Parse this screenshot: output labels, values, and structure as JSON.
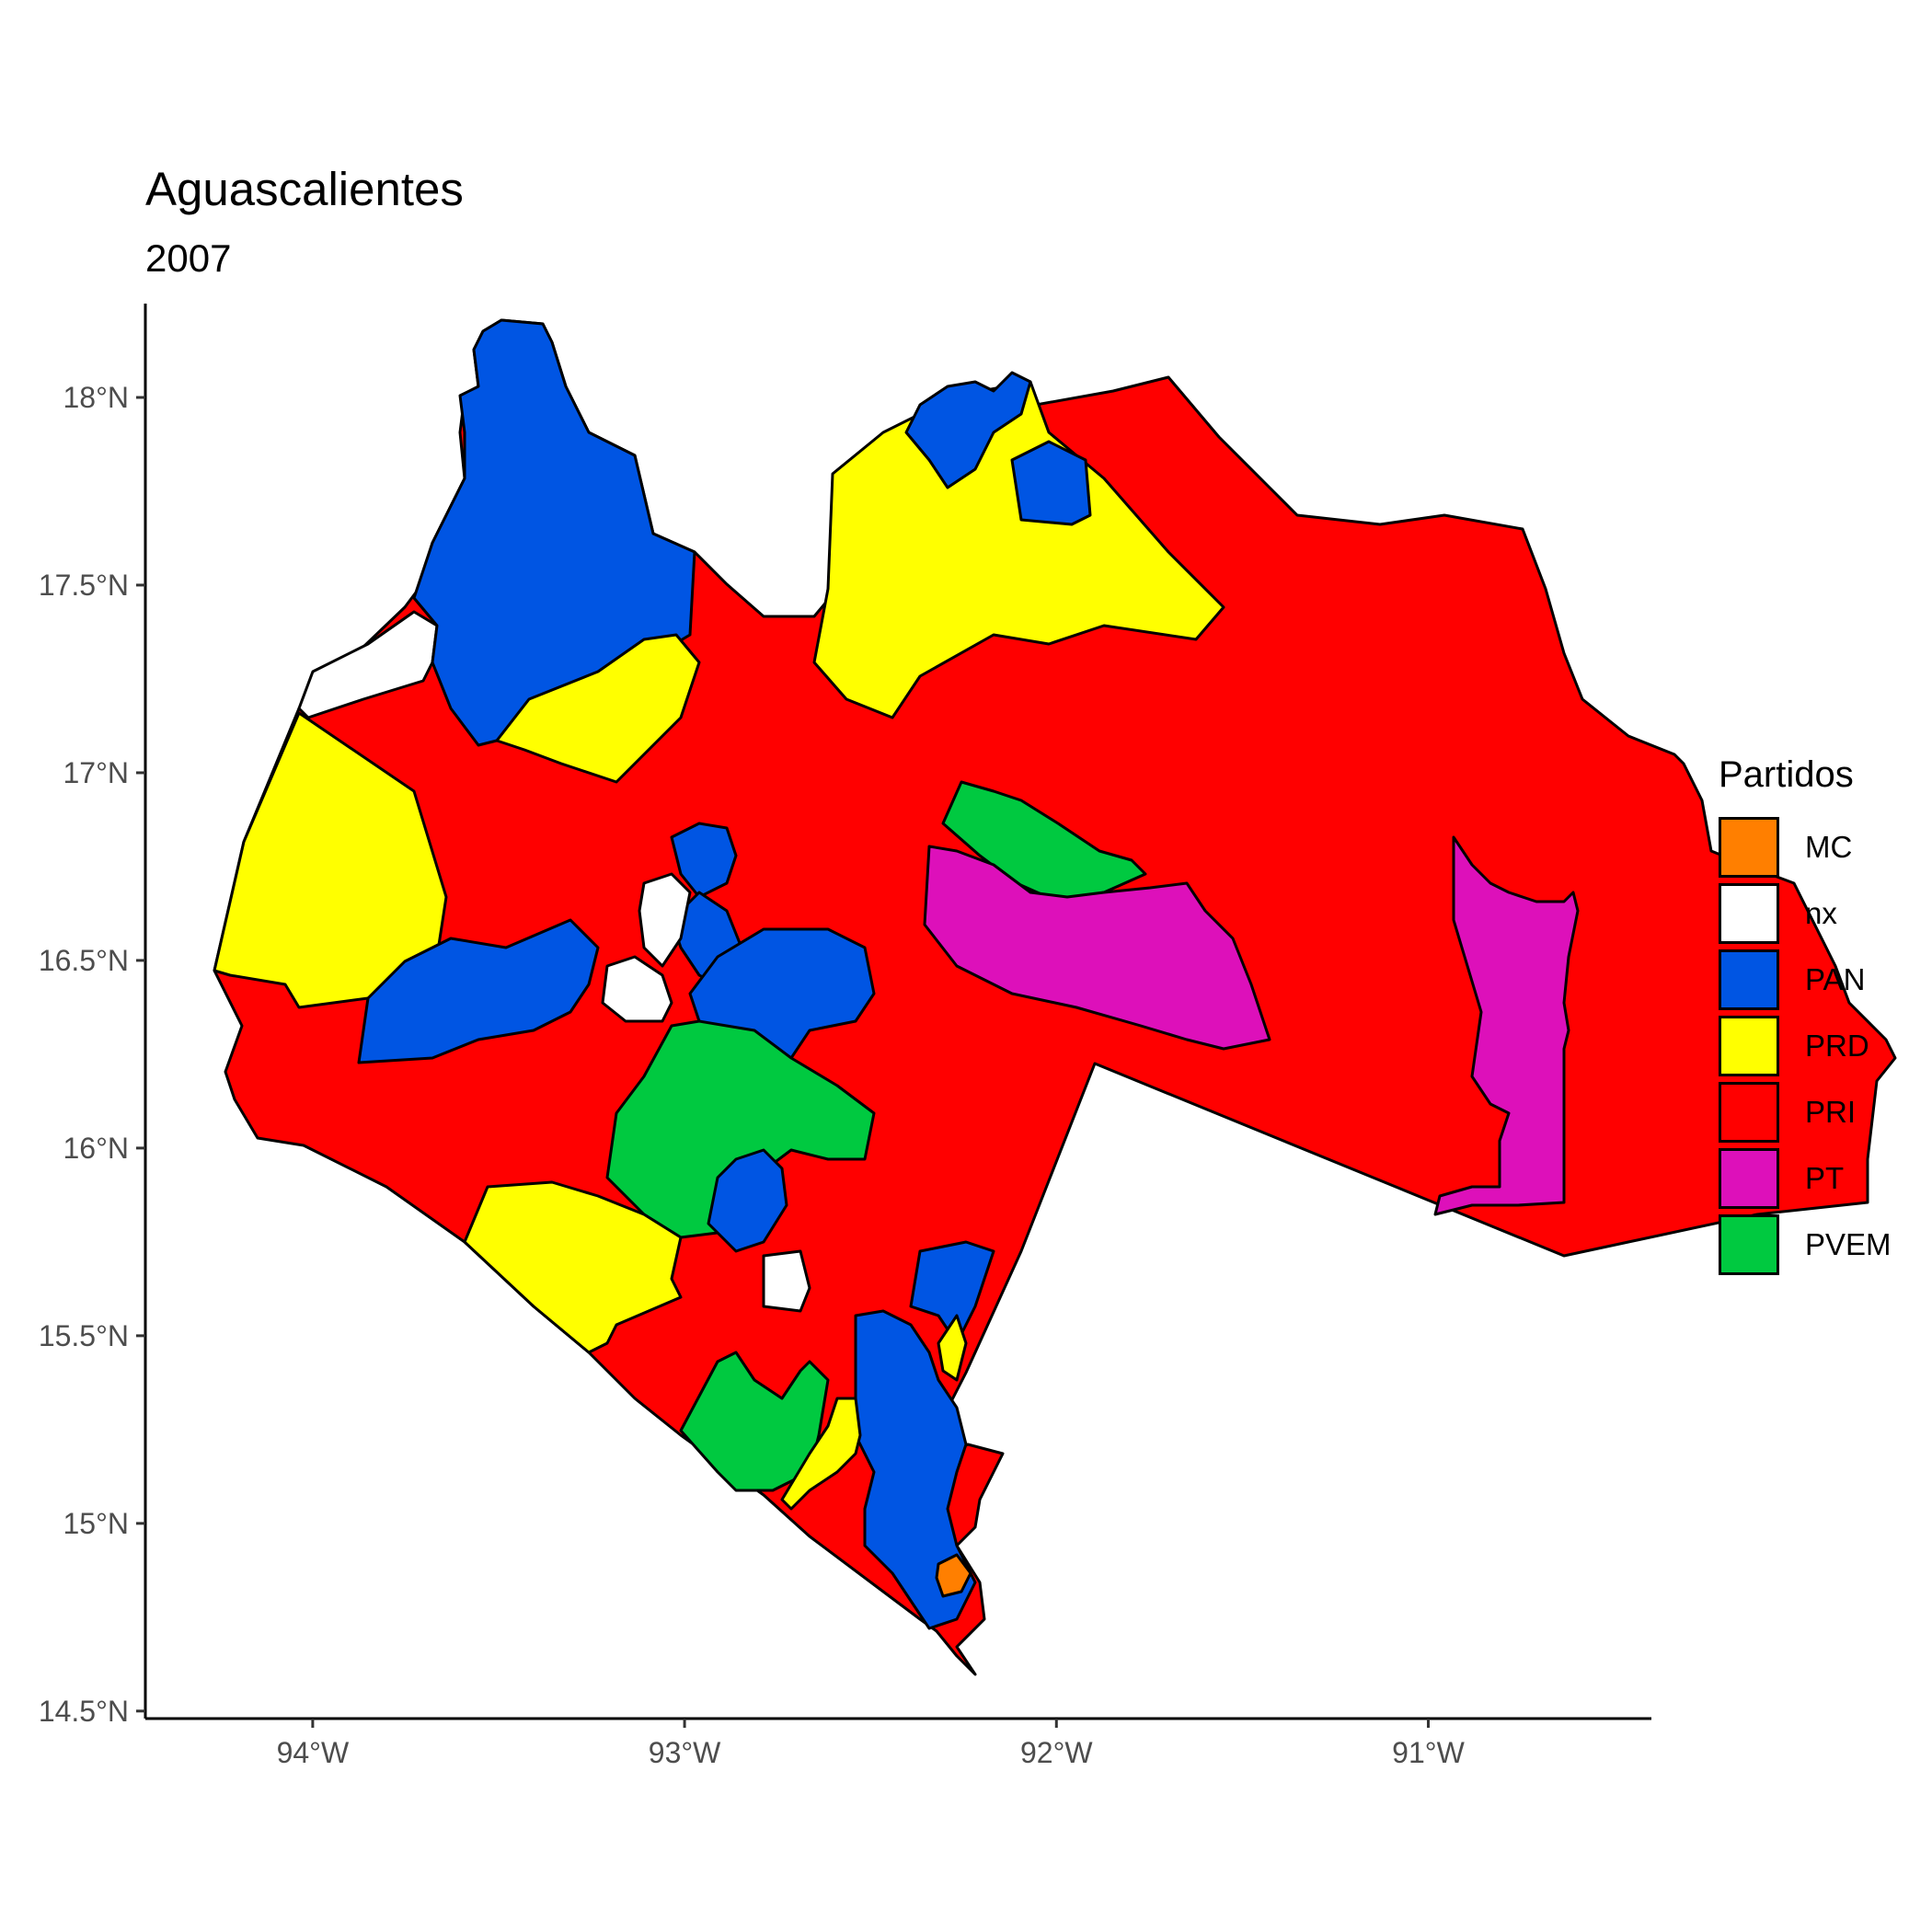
{
  "title": "Aguascalientes",
  "subtitle": "2007",
  "chart_data": {
    "type": "choropleth",
    "x_ticks": [
      "94°W",
      "93°W",
      "92°W",
      "91°W"
    ],
    "x_tick_values": [
      -94,
      -93,
      -92,
      -91
    ],
    "y_ticks": [
      "18°N",
      "17.5°N",
      "17°N",
      "16.5°N",
      "16°N",
      "15.5°N",
      "15°N",
      "14.5°N"
    ],
    "y_tick_values": [
      18,
      17.5,
      17,
      16.5,
      16,
      15.5,
      15,
      14.5
    ],
    "xlim": [
      -94.45,
      -90.4
    ],
    "ylim": [
      14.48,
      18.25
    ],
    "legend": {
      "title": "Partidos",
      "placement": "right",
      "items": [
        {
          "label": "MC",
          "color": "#FF7F00"
        },
        {
          "label": "nx",
          "color": "#FFFFFF"
        },
        {
          "label": "PAN",
          "color": "#0055E3"
        },
        {
          "label": "PRD",
          "color": "#FFFF00"
        },
        {
          "label": "PRI",
          "color": "#FF0000"
        },
        {
          "label": "PT",
          "color": "#DD10BA"
        },
        {
          "label": "PVEM",
          "color": "#00C940"
        }
      ]
    }
  }
}
